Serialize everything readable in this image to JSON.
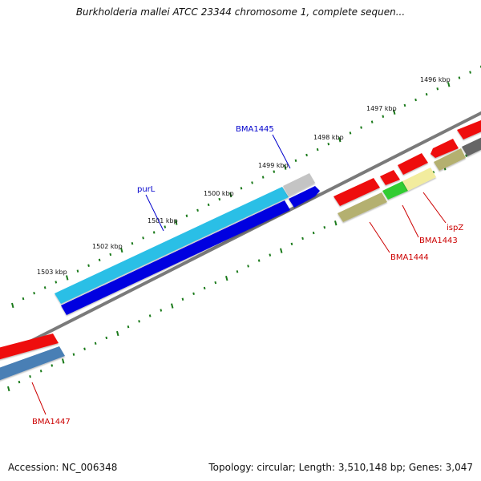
{
  "title": "Burkholderia mallei ATCC 23344 chromosome 1, complete sequen...",
  "footer": {
    "accession": "Accession: NC_006348",
    "summary": "Topology: circular; Length: 3,510,148 bp; Genes: 3,047"
  },
  "ruler": {
    "labels": [
      "1496 kbp",
      "1497 kbp",
      "1498 kbp",
      "1499 kbp",
      "1500 kbp",
      "1501 kbp",
      "1502 kbp",
      "1503 kbp"
    ]
  },
  "genes": [
    {
      "name": "BMA1445",
      "color": "#0000cc"
    },
    {
      "name": "purL",
      "color": "#0000cc"
    },
    {
      "name": "ispZ",
      "color": "#cc0000"
    },
    {
      "name": "BMA1443",
      "color": "#cc0000"
    },
    {
      "name": "BMA1444",
      "color": "#cc0000"
    },
    {
      "name": "BMA1447",
      "color": "#cc0000"
    }
  ],
  "colors": {
    "backbone": "#888888",
    "tick": "#1a7a1a",
    "cyan": "#29bfe6",
    "blue": "#0000e0",
    "red": "#ee1111",
    "olive": "#b4b070",
    "paleyellow": "#f2ec9e",
    "green": "#33cc33",
    "gray": "#bdbdbd",
    "steelblue": "#4a7fb5",
    "darkgray": "#666666"
  }
}
